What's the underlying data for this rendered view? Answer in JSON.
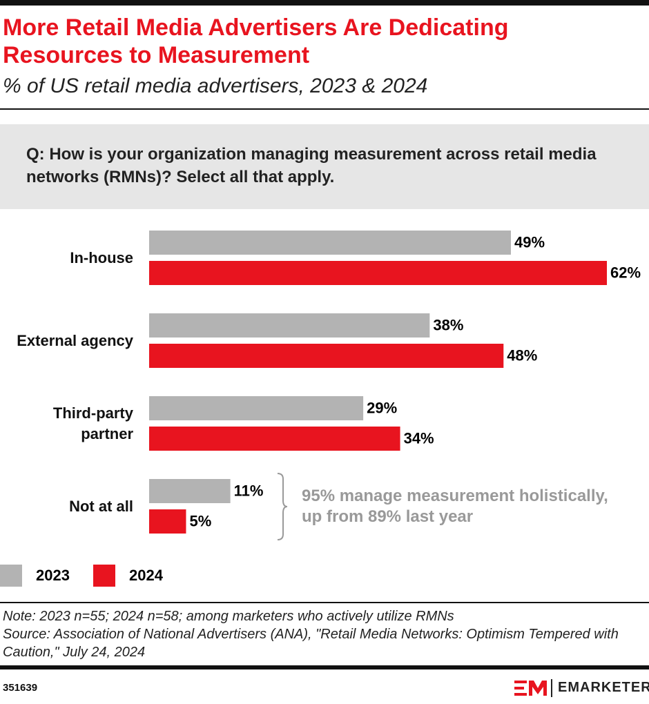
{
  "chart_data": {
    "type": "bar",
    "orientation": "horizontal",
    "title": "More Retail Media Advertisers Are Dedicating Resources to Measurement",
    "subtitle": "% of US retail media advertisers, 2023 & 2024",
    "question": "Q: How is your organization managing measurement across retail media networks (RMNs)? Select all that apply.",
    "categories": [
      "In-house",
      "External agency",
      "Third-party partner",
      "Not at all"
    ],
    "series": [
      {
        "name": "2023",
        "color": "#b3b3b3",
        "values": [
          49,
          38,
          29,
          11
        ],
        "value_labels": [
          "49%",
          "38%",
          "29%",
          "11%"
        ]
      },
      {
        "name": "2024",
        "color": "#e8141f",
        "values": [
          62,
          48,
          34,
          5
        ],
        "value_labels": [
          "62%",
          "48%",
          "34%",
          "5%"
        ]
      }
    ],
    "annotation": "95% manage measurement holistically, up from 89% last year",
    "note": "Note: 2023 n=55; 2024 n=58; among marketers who actively utilize RMNs",
    "source": "Source: Association of National Advertisers (ANA), \"Retail Media Networks: Optimism Tempered with Caution,\" July 24, 2024",
    "chart_id": "351639",
    "brand": "EMARKETER"
  }
}
